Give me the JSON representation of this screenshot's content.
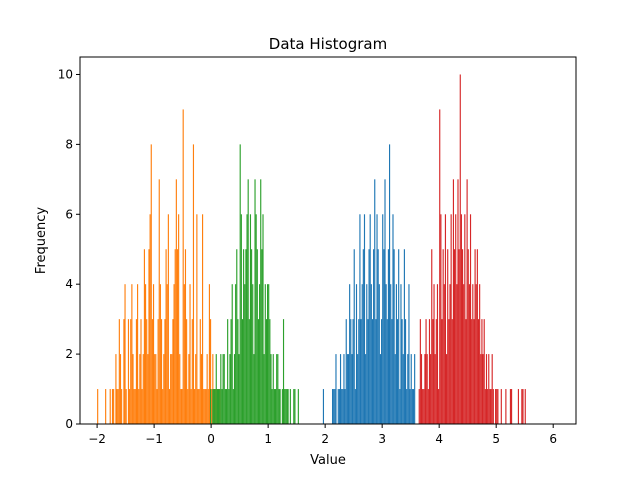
{
  "chart_data": {
    "type": "bar",
    "title": "Data Histogram",
    "xlabel": "Value",
    "ylabel": "Frequency",
    "xlim": [
      -2.3,
      6.4
    ],
    "ylim": [
      0,
      10.5
    ],
    "xticks": [
      -2,
      -1,
      0,
      1,
      2,
      3,
      4,
      5,
      6
    ],
    "yticks": [
      0,
      2,
      4,
      6,
      8,
      10
    ],
    "grid": false,
    "series": [
      {
        "color": "#ff7f0e",
        "bin_start": -2.0,
        "bin_width": 0.02,
        "values": [
          1,
          0,
          0,
          0,
          0,
          0,
          0,
          1,
          0,
          0,
          0,
          1,
          0,
          1,
          1,
          0,
          2,
          1,
          1,
          3,
          2,
          1,
          0,
          3,
          4,
          1,
          0,
          3,
          1,
          3,
          4,
          2,
          1,
          1,
          3,
          4,
          1,
          2,
          3,
          1,
          2,
          5,
          4,
          3,
          2,
          5,
          6,
          8,
          3,
          4,
          2,
          2,
          1,
          3,
          7,
          4,
          3,
          1,
          2,
          3,
          5,
          4,
          6,
          1,
          2,
          2,
          3,
          4,
          5,
          7,
          5,
          6,
          2,
          1,
          1,
          9,
          4,
          5,
          3,
          1,
          2,
          4,
          1,
          3,
          8,
          1,
          2,
          6,
          1,
          1,
          3,
          2,
          6,
          1,
          1,
          1,
          2,
          1,
          4,
          3,
          1,
          2,
          1,
          1,
          1,
          1,
          1,
          1
        ]
      },
      {
        "color": "#2ca02c",
        "bin_start": -0.02,
        "bin_width": 0.02,
        "values": [
          1,
          0,
          1,
          1,
          1,
          2,
          1,
          1,
          1,
          2,
          1,
          2,
          2,
          1,
          1,
          3,
          1,
          2,
          3,
          4,
          1,
          2,
          4,
          5,
          3,
          2,
          8,
          6,
          3,
          5,
          4,
          5,
          6,
          7,
          3,
          6,
          5,
          4,
          2,
          7,
          6,
          5,
          3,
          4,
          7,
          5,
          6,
          2,
          4,
          3,
          4,
          4,
          3,
          2,
          1,
          2,
          1,
          1,
          2,
          2,
          1,
          1,
          0,
          1,
          3,
          1,
          1,
          1,
          1,
          0,
          1,
          0,
          0,
          1,
          1,
          0,
          0,
          1
        ]
      },
      {
        "color": "#1f77b4",
        "bin_start": 1.96,
        "bin_width": 0.02,
        "values": [
          1,
          0,
          0,
          0,
          0,
          0,
          0,
          0,
          1,
          1,
          1,
          2,
          0,
          1,
          1,
          2,
          1,
          1,
          2,
          1,
          3,
          2,
          2,
          4,
          3,
          2,
          3,
          5,
          1,
          4,
          2,
          3,
          6,
          3,
          4,
          5,
          6,
          2,
          4,
          3,
          5,
          6,
          4,
          3,
          5,
          7,
          3,
          6,
          5,
          4,
          2,
          3,
          6,
          5,
          7,
          4,
          3,
          5,
          8,
          4,
          3,
          6,
          5,
          2,
          4,
          3,
          5,
          1,
          4,
          3,
          2,
          5,
          3,
          1,
          2,
          4,
          1,
          2,
          1,
          1,
          2
        ]
      },
      {
        "color": "#d62728",
        "bin_start": 3.64,
        "bin_width": 0.02,
        "values": [
          1,
          3,
          2,
          1,
          1,
          2,
          3,
          2,
          1,
          3,
          2,
          5,
          3,
          4,
          2,
          3,
          4,
          1,
          9,
          6,
          3,
          5,
          4,
          6,
          2,
          5,
          3,
          4,
          6,
          3,
          7,
          5,
          6,
          4,
          7,
          5,
          10,
          6,
          5,
          4,
          6,
          3,
          7,
          5,
          4,
          6,
          3,
          4,
          3,
          5,
          4,
          5,
          3,
          4,
          2,
          3,
          2,
          3,
          1,
          2,
          1,
          2,
          1,
          1,
          2,
          1,
          0,
          1,
          1,
          1,
          0,
          0,
          1,
          0,
          0,
          0,
          1,
          0,
          0,
          0,
          1,
          1,
          0,
          0,
          0,
          0,
          0,
          1,
          0,
          0,
          1,
          1,
          0,
          1
        ]
      }
    ]
  }
}
